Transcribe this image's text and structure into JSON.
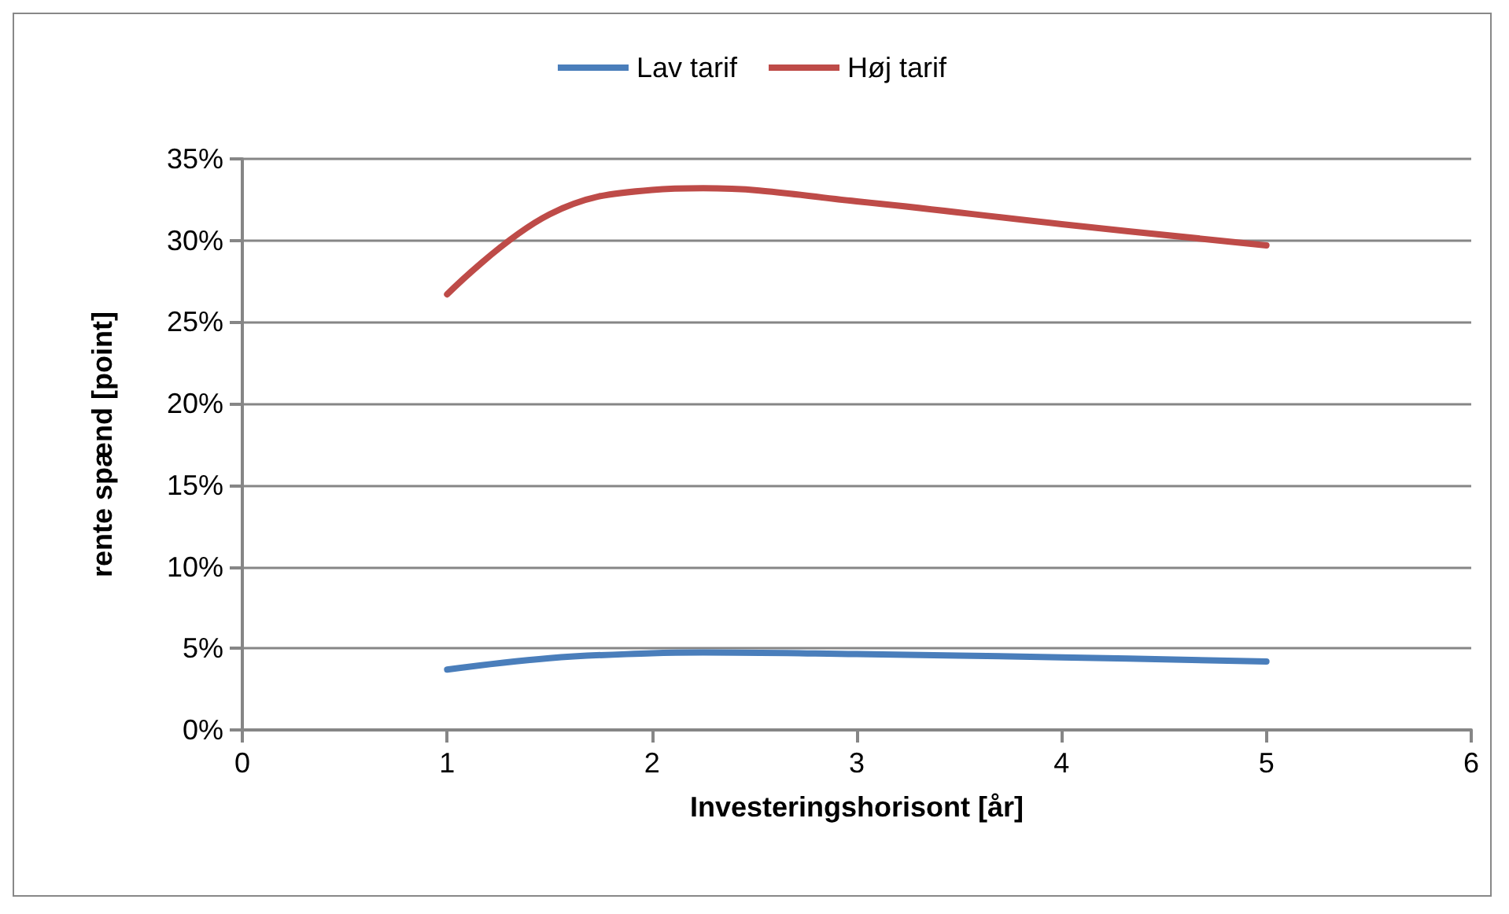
{
  "chart_data": {
    "type": "line",
    "xlabel": "Investeringshorisont [år]",
    "ylabel": "rente spænd [point]",
    "x": [
      1,
      1.5,
      2,
      2.25,
      3,
      4,
      5
    ],
    "series": [
      {
        "name": "Lav tarif",
        "color": "#4a7ebb",
        "values": [
          3.7,
          4.4,
          4.7,
          4.75,
          4.65,
          4.45,
          4.2
        ]
      },
      {
        "name": "Høj tarif",
        "color": "#be4b48",
        "values": [
          26.7,
          31.6,
          33.1,
          33.2,
          32.4,
          31.0,
          29.7
        ]
      }
    ],
    "xlim": [
      0,
      6
    ],
    "xticks": [
      0,
      1,
      2,
      3,
      4,
      5,
      6
    ],
    "ylim": [
      0,
      35
    ],
    "yticks": [
      {
        "value": 0,
        "label": "0%"
      },
      {
        "value": 5,
        "label": "5%"
      },
      {
        "value": 10,
        "label": "10%"
      },
      {
        "value": 15,
        "label": "15%"
      },
      {
        "value": 20,
        "label": "20%"
      },
      {
        "value": 25,
        "label": "25%"
      },
      {
        "value": 30,
        "label": "30%"
      },
      {
        "value": 35,
        "label": "35%"
      }
    ],
    "grid": "y",
    "legend": "top",
    "marker": "none",
    "line_style": "solid"
  }
}
